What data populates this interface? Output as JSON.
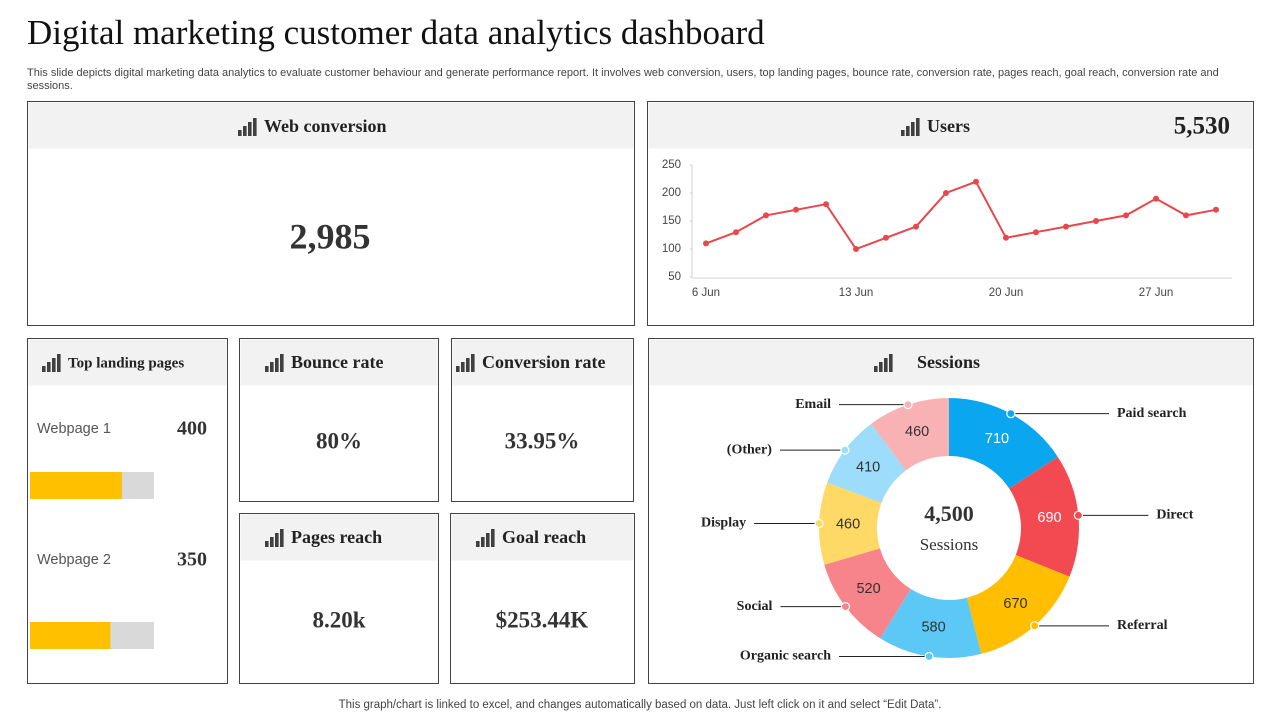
{
  "header": {
    "title": "Digital marketing customer data analytics dashboard",
    "subtitle": "This slide depicts digital marketing data analytics to evaluate customer behaviour and generate performance report. It involves web conversion, users, top landing pages, bounce rate, conversion rate, pages reach, goal reach, conversion rate and sessions."
  },
  "panels": {
    "web_conversion": {
      "title": "Web conversion",
      "value": "2,985"
    },
    "users": {
      "title": "Users",
      "value": "5,530"
    },
    "bounce_rate": {
      "title": "Bounce rate",
      "value": "80%"
    },
    "conversion_rate": {
      "title": "Conversion rate",
      "value": "33.95%"
    },
    "pages_reach": {
      "title": "Pages reach",
      "value": "8.20k"
    },
    "goal_reach": {
      "title": "Goal reach",
      "value": "$253.44K"
    }
  },
  "chart_data": [
    {
      "type": "line",
      "categories": [
        "6 Jun",
        null,
        null,
        null,
        null,
        "13 Jun",
        null,
        null,
        null,
        null,
        "20 Jun",
        null,
        null,
        null,
        null,
        "27 Jun",
        null,
        null
      ],
      "values": [
        110,
        130,
        160,
        170,
        180,
        100,
        120,
        140,
        200,
        220,
        120,
        130,
        140,
        150,
        160,
        190,
        160,
        170
      ],
      "color": "#e8474c",
      "ylim": [
        50,
        250
      ],
      "yticks": [
        50,
        100,
        150,
        200,
        250
      ]
    },
    {
      "type": "pie",
      "title": "Sessions",
      "center_value": "4,500",
      "center_label": "Sessions",
      "categories": [
        "Paid search",
        "Direct",
        "Referral",
        "Organic search",
        "Social",
        "Display",
        "(Other)",
        "Email"
      ],
      "values": [
        710,
        690,
        670,
        580,
        520,
        460,
        410,
        460
      ],
      "colors": [
        "#0aa6f0",
        "#f24a50",
        "#ffbf00",
        "#5bc8f5",
        "#f7848a",
        "#ffd966",
        "#9ddcfa",
        "#f9b2b4"
      ]
    },
    {
      "type": "bar",
      "orientation": "horizontal",
      "title": "Top landing pages",
      "categories": [
        "Webpage 1",
        "Webpage 2"
      ],
      "values": [
        400,
        350
      ],
      "color": "#ffc000",
      "xlim": [
        0,
        540
      ]
    }
  ],
  "footer": "This graph/chart is linked to excel, and changes automatically based on data. Just left click on it and select “Edit Data”."
}
